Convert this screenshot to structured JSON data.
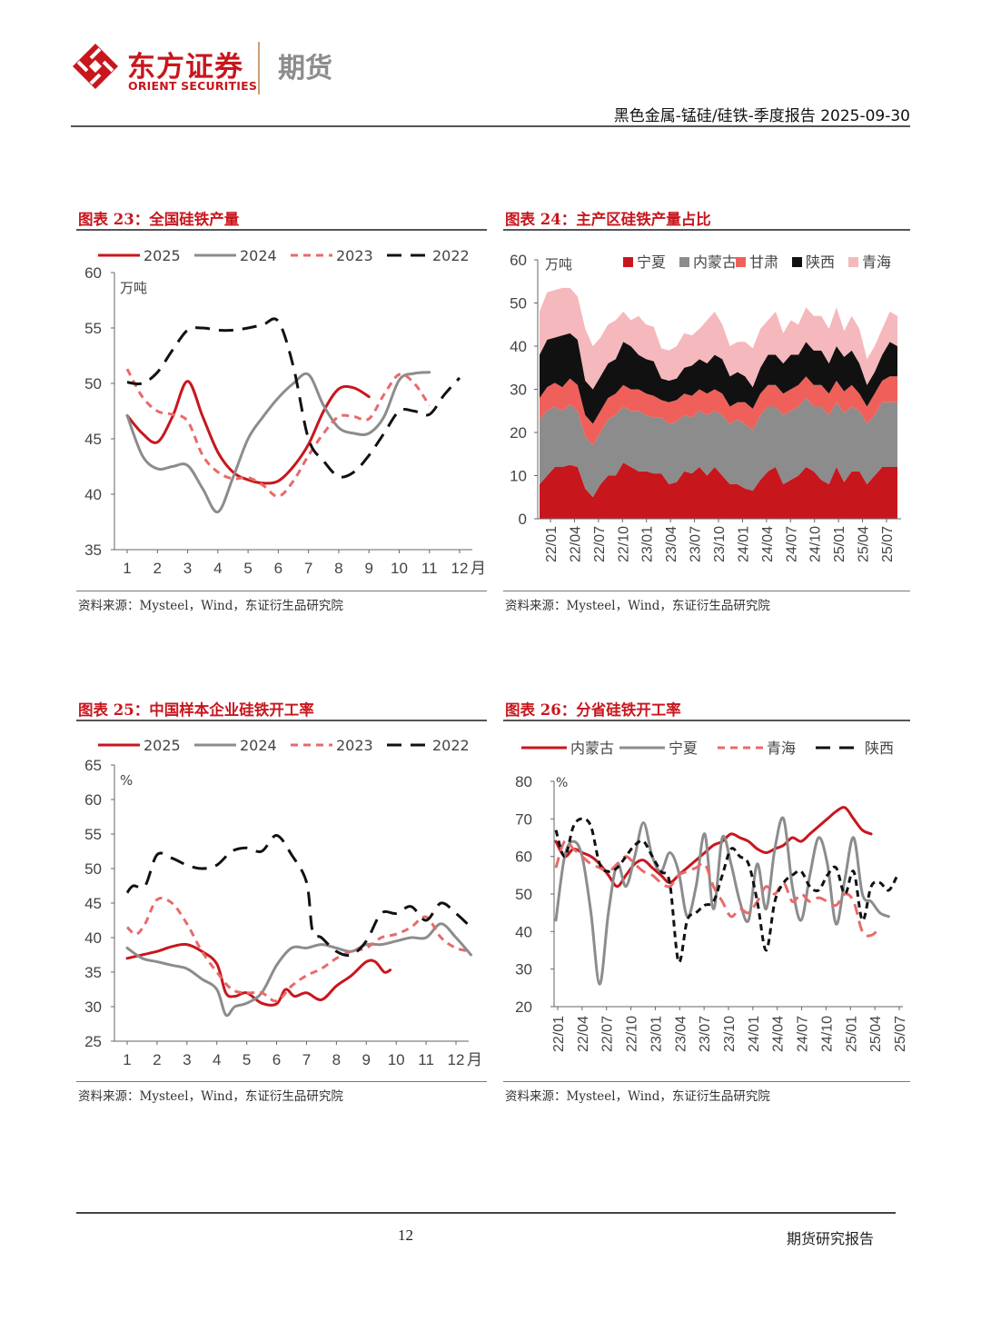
{
  "header": {
    "logo_cn": "东方证券",
    "logo_en": "ORIENT SECURITIES",
    "logo_sub": "期货",
    "report_title": "黑色金属-锰硅/硅铁-季度报告 2025-09-30",
    "brand_color": "#c8161d"
  },
  "footer": {
    "page_number": "12",
    "right_text": "期货研究报告"
  },
  "figures": [
    {
      "title": "图表 23：全国硅铁产量",
      "source": "资料来源：Mysteel，Wind，东证衍生品研究院"
    },
    {
      "title": "图表 24：主产区硅铁产量占比",
      "source": "资料来源：Mysteel，Wind，东证衍生品研究院"
    },
    {
      "title": "图表 25：中国样本企业硅铁开工率",
      "source": "资料来源：Mysteel，Wind，东证衍生品研究院"
    },
    {
      "title": "图表 26：分省硅铁开工率",
      "source": "资料来源：Mysteel，Wind，东证衍生品研究院"
    }
  ],
  "chart_data": [
    {
      "type": "line",
      "title": "图表 23：全国硅铁产量",
      "unit": "万吨",
      "xlabel": "月",
      "x": [
        1,
        2,
        3,
        4,
        5,
        6,
        7,
        8,
        9,
        10,
        11,
        12
      ],
      "xticks": [
        "1",
        "2",
        "3",
        "4",
        "5",
        "6",
        "7",
        "8",
        "9",
        "10",
        "11",
        "12"
      ],
      "ylim": [
        35,
        60
      ],
      "yticks": [
        "35",
        "40",
        "45",
        "50",
        "55",
        "60"
      ],
      "legend_position": "top",
      "series": [
        {
          "name": "2025",
          "color": "#c8161d",
          "dash": "solid",
          "x": [
            1,
            1.5,
            2,
            2.5,
            3,
            3.5,
            4,
            4.5,
            5,
            5.5,
            6,
            6.5,
            7,
            7.5,
            8,
            8.5,
            9
          ],
          "values": [
            47.1,
            45.5,
            44.7,
            47.0,
            50.2,
            47.0,
            43.8,
            42.0,
            41.3,
            41.0,
            41.2,
            42.5,
            44.5,
            47.5,
            49.5,
            49.6,
            48.8
          ]
        },
        {
          "name": "2024",
          "color": "#8c8c8c",
          "dash": "solid",
          "x": [
            1,
            1.5,
            2,
            2.5,
            3,
            3.5,
            4,
            4.5,
            5,
            5.5,
            6,
            6.5,
            7,
            7.5,
            8,
            8.5,
            9,
            9.5,
            10,
            10.5,
            11
          ],
          "values": [
            47.1,
            43.5,
            42.3,
            42.5,
            42.6,
            40.5,
            38.4,
            41.5,
            45.0,
            47.0,
            48.7,
            50.0,
            50.8,
            48.0,
            46.0,
            45.5,
            45.5,
            47.0,
            50.3,
            50.9,
            51.0
          ]
        },
        {
          "name": "2023",
          "color": "#e86a6a",
          "dash": "dashed",
          "x": [
            1,
            1.5,
            2,
            2.5,
            3,
            3.5,
            4,
            4.5,
            5,
            5.5,
            6,
            6.5,
            7,
            7.5,
            8,
            8.5,
            9,
            9.5,
            10,
            10.5,
            11
          ],
          "values": [
            51.3,
            48.8,
            47.5,
            47.2,
            46.6,
            43.5,
            42.0,
            41.4,
            41.5,
            40.8,
            39.8,
            41.2,
            43.5,
            45.5,
            47.0,
            47.0,
            46.8,
            49.0,
            50.8,
            50.0,
            48.0
          ]
        },
        {
          "name": "2022",
          "color": "#111111",
          "dash": "dashed",
          "x": [
            1,
            1.5,
            2,
            2.5,
            3,
            3.5,
            4,
            4.5,
            5,
            5.5,
            6,
            6.5,
            7,
            7.5,
            8,
            8.5,
            9,
            9.5,
            10,
            10.5,
            11,
            11.5,
            12
          ],
          "values": [
            50.1,
            50.0,
            51.0,
            53.0,
            54.8,
            55.0,
            54.8,
            54.8,
            55.0,
            55.3,
            55.6,
            51.5,
            45.0,
            43.0,
            41.6,
            42.0,
            43.5,
            45.5,
            47.5,
            47.5,
            47.2,
            49.0,
            50.5
          ]
        }
      ]
    },
    {
      "type": "area",
      "stacked": true,
      "title": "图表 24：主产区硅铁产量占比",
      "unit": "万吨",
      "ylim": [
        0,
        60
      ],
      "yticks": [
        "0",
        "10",
        "20",
        "30",
        "40",
        "50",
        "60"
      ],
      "xticks": [
        "22/01",
        "22/04",
        "22/07",
        "22/10",
        "23/01",
        "23/04",
        "23/07",
        "23/10",
        "24/01",
        "24/04",
        "24/07",
        "24/10",
        "25/01",
        "25/04",
        "25/07"
      ],
      "legend_position": "top",
      "series": [
        {
          "name": "宁夏",
          "color": "#c8161d",
          "values": [
            8,
            10,
            12,
            12,
            12.5,
            12,
            7,
            5,
            8,
            10,
            10,
            13,
            12,
            11,
            11,
            10.5,
            10.5,
            8,
            8.5,
            11,
            10.5,
            12,
            10,
            12,
            10,
            8,
            8,
            7,
            6.5,
            9,
            11,
            12,
            8,
            9,
            10,
            12,
            11,
            9,
            8,
            12,
            8.5,
            11,
            11,
            8,
            10,
            12,
            12,
            12
          ]
        },
        {
          "name": "内蒙古",
          "color": "#8c8c8c",
          "values": [
            15,
            15,
            14,
            13,
            14,
            13,
            12,
            12,
            12,
            13,
            14,
            13,
            13,
            14,
            13,
            13,
            13,
            14,
            14,
            13,
            13,
            13,
            14,
            13,
            14,
            14,
            15,
            15,
            14,
            15,
            15,
            14,
            16,
            16,
            16,
            16,
            15,
            17,
            16,
            15,
            16,
            15,
            14,
            14,
            14,
            15,
            15,
            15
          ]
        },
        {
          "name": "甘肃",
          "color": "#f0605a",
          "values": [
            5,
            5.5,
            5.5,
            5.5,
            6,
            6,
            5,
            5,
            5,
            5,
            5,
            5,
            5,
            5,
            5,
            5,
            4,
            5,
            5,
            5,
            5,
            5,
            5,
            5,
            5,
            4,
            4,
            5,
            5,
            5,
            5,
            5,
            5,
            5,
            5,
            5,
            5,
            5,
            5,
            5,
            5,
            5,
            4,
            4,
            5,
            5,
            6,
            6
          ]
        },
        {
          "name": "陕西",
          "color": "#111111",
          "values": [
            10,
            11,
            10.5,
            12,
            10.5,
            10.5,
            8,
            8,
            8,
            8,
            8,
            10,
            10,
            8,
            8,
            8,
            5,
            5,
            5,
            6,
            7,
            7,
            7,
            8,
            8,
            7,
            7,
            6,
            5,
            6,
            7,
            7,
            7,
            8,
            7,
            8,
            8,
            8,
            7,
            8,
            8,
            8,
            7,
            5,
            5,
            6,
            8,
            7
          ]
        },
        {
          "name": "青海",
          "color": "#f5b8bc",
          "values": [
            10,
            11,
            11,
            11,
            10.5,
            10,
            12,
            10,
            9,
            9,
            9,
            7,
            6,
            9,
            8,
            8,
            7,
            7,
            7.5,
            8,
            7,
            7,
            10,
            10,
            8,
            7,
            7,
            8,
            9,
            9,
            8,
            10,
            7,
            8,
            7,
            8,
            8,
            8,
            8,
            9,
            6,
            8,
            8,
            6,
            6,
            6,
            7,
            7
          ]
        }
      ]
    },
    {
      "type": "line",
      "title": "图表 25：中国样本企业硅铁开工率",
      "unit": "%",
      "xlabel": "月",
      "xticks": [
        "1",
        "2",
        "3",
        "4",
        "5",
        "6",
        "7",
        "8",
        "9",
        "10",
        "11",
        "12"
      ],
      "ylim": [
        25,
        65
      ],
      "yticks": [
        "25",
        "30",
        "35",
        "40",
        "45",
        "50",
        "55",
        "60",
        "65"
      ],
      "legend_position": "top",
      "series": [
        {
          "name": "2025",
          "color": "#c8161d",
          "dash": "solid",
          "x": [
            1,
            1.5,
            2,
            2.5,
            3,
            3.5,
            4,
            4.3,
            4.6,
            5,
            5.5,
            6,
            6.3,
            6.6,
            7,
            7.5,
            8,
            8.5,
            9,
            9.3,
            9.6,
            9.8
          ],
          "values": [
            37.0,
            37.5,
            38.0,
            38.7,
            39.0,
            38.0,
            36.2,
            32.0,
            31.5,
            32.0,
            30.5,
            30.4,
            32.5,
            31.5,
            32.0,
            31.0,
            33.0,
            34.5,
            36.5,
            36.5,
            35.0,
            35.3
          ]
        },
        {
          "name": "2024",
          "color": "#8c8c8c",
          "dash": "solid",
          "x": [
            1,
            1.5,
            2,
            2.5,
            3,
            3.5,
            4,
            4.3,
            4.6,
            5,
            5.5,
            6,
            6.5,
            7,
            7.5,
            8,
            8.5,
            9,
            9.5,
            10,
            10.5,
            11,
            11.5,
            12,
            12.5
          ],
          "values": [
            38.5,
            37.0,
            36.5,
            36.0,
            35.5,
            34.0,
            32.5,
            28.8,
            30.0,
            30.5,
            32.0,
            36.0,
            38.5,
            38.5,
            39.0,
            38.5,
            38.0,
            39.0,
            39.0,
            39.5,
            40.0,
            40.0,
            42.0,
            40.0,
            37.5
          ]
        },
        {
          "name": "2023",
          "color": "#e86a6a",
          "dash": "dashed",
          "x": [
            1,
            1.3,
            1.6,
            2,
            2.5,
            3,
            3.5,
            4,
            4.5,
            5,
            5.5,
            6,
            6.5,
            7,
            7.5,
            8,
            8.5,
            9,
            9.5,
            10,
            10.5,
            11,
            11.5,
            12,
            12.5
          ],
          "values": [
            41.5,
            40.5,
            42.0,
            45.5,
            45.0,
            42.0,
            38.0,
            35.0,
            32.5,
            32.0,
            32.0,
            30.8,
            33.0,
            34.5,
            35.5,
            37.0,
            38.0,
            38.5,
            40.0,
            40.5,
            41.5,
            43.0,
            40.0,
            38.5,
            38.0
          ]
        },
        {
          "name": "2022",
          "color": "#111111",
          "dash": "dashed",
          "x": [
            1,
            1.2,
            1.6,
            2,
            2.5,
            3,
            3.5,
            4,
            4.5,
            5,
            5.5,
            6,
            6.5,
            7,
            7.2,
            7.5,
            8,
            8.5,
            9,
            9.5,
            10,
            10.5,
            11,
            11.5,
            12,
            12.5
          ],
          "values": [
            46.5,
            47.5,
            47.5,
            52.0,
            51.5,
            50.5,
            50.0,
            50.5,
            52.5,
            53.0,
            52.5,
            54.8,
            52.0,
            48.0,
            41.0,
            40.0,
            38.0,
            37.5,
            39.5,
            43.5,
            43.5,
            44.5,
            42.5,
            45.0,
            43.5,
            41.5
          ]
        }
      ]
    },
    {
      "type": "line",
      "title": "图表 26：分省硅铁开工率",
      "unit": "%",
      "ylim": [
        20,
        80
      ],
      "yticks": [
        "20",
        "30",
        "40",
        "50",
        "60",
        "70",
        "80"
      ],
      "xticks": [
        "22/01",
        "22/04",
        "22/07",
        "22/10",
        "23/01",
        "23/04",
        "23/07",
        "23/10",
        "24/01",
        "24/04",
        "24/07",
        "24/10",
        "25/01",
        "25/04",
        "25/07"
      ],
      "legend_position": "top",
      "series": [
        {
          "name": "内蒙古",
          "color": "#c8161d",
          "dash": "solid",
          "values": [
            64,
            60,
            62,
            61,
            60,
            58,
            55,
            52,
            55,
            58,
            59,
            57,
            55,
            53,
            55,
            57,
            59,
            61,
            63,
            64,
            66,
            65,
            64,
            62,
            61,
            62,
            63,
            65,
            64,
            66,
            68,
            70,
            72,
            73,
            70,
            67,
            66
          ]
        },
        {
          "name": "宁夏",
          "color": "#8c8c8c",
          "dash": "solid",
          "values": [
            43,
            60,
            64,
            60,
            45,
            26,
            45,
            58,
            52,
            60,
            69,
            60,
            56,
            61,
            56,
            44,
            52,
            66,
            46,
            65,
            58,
            48,
            43,
            58,
            46,
            62,
            70,
            52,
            43,
            55,
            65,
            58,
            42,
            54,
            65,
            50,
            48,
            45,
            44
          ]
        },
        {
          "name": "青海",
          "color": "#e86a6a",
          "dash": "dashed",
          "values": [
            57,
            64,
            62,
            60,
            58,
            57,
            56,
            58,
            60,
            58,
            56,
            55,
            53,
            52,
            55,
            56,
            57,
            58,
            52,
            48,
            44,
            46,
            45,
            48,
            52,
            50,
            53,
            48,
            50,
            48,
            49,
            48,
            47,
            50,
            48,
            40,
            39,
            41
          ]
        },
        {
          "name": "陕西",
          "color": "#111111",
          "dash": "dashed",
          "values": [
            67,
            60,
            68,
            70,
            68,
            58,
            56,
            57,
            60,
            63,
            64,
            60,
            56,
            53,
            32,
            43,
            45,
            47,
            48,
            55,
            62,
            60,
            58,
            48,
            35,
            48,
            53,
            55,
            56,
            52,
            51,
            55,
            57,
            50,
            56,
            43,
            52,
            53,
            51,
            55
          ]
        }
      ]
    }
  ]
}
